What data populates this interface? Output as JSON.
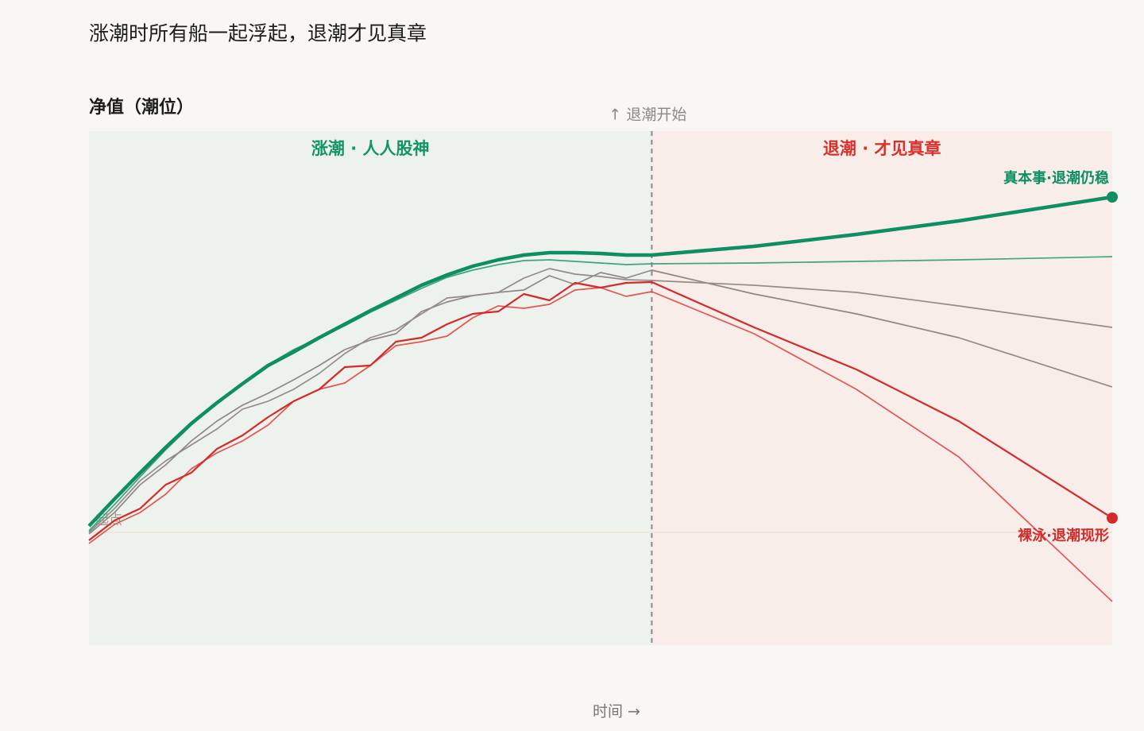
{
  "title": "涨潮时所有船一起浮起，退潮才见真章",
  "chart_data": {
    "type": "line",
    "y_label": "净值（潮位）",
    "x_label": "时间 →",
    "split_label": "↑ 退潮开始",
    "rise_label": "涨潮 · 人人股神",
    "fall_label": "退潮 · 才见真章",
    "baseline_label": "起点",
    "split_x": 22,
    "baseline": 0,
    "xlim": [
      0,
      40
    ],
    "ylim": [
      -142,
      505
    ],
    "x": [
      0,
      1,
      2,
      3,
      4,
      5,
      6,
      7,
      8,
      9,
      10,
      11,
      12,
      13,
      14,
      15,
      16,
      17,
      18,
      19,
      20,
      21,
      22,
      26,
      30,
      34,
      40
    ],
    "series": [
      {
        "name": "真本事·退潮仍稳",
        "color": "#0e8f63",
        "values": [
          8,
          42,
          75,
          107,
          137,
          163,
          187,
          210,
          227,
          245,
          262,
          279,
          295,
          311,
          324,
          335,
          343,
          349,
          352,
          352,
          351,
          349,
          349,
          360,
          375,
          392,
          422
        ]
      },
      {
        "color": "#3ea57f",
        "values": [
          2,
          35,
          70,
          104,
          135,
          162,
          188,
          211,
          230,
          245,
          260,
          277,
          292,
          307,
          321,
          330,
          337,
          342,
          343,
          341,
          339,
          337,
          338,
          339,
          341,
          343,
          347
        ]
      },
      {
        "color": "#958b87",
        "values": [
          0,
          30,
          65,
          90,
          110,
          130,
          155,
          165,
          180,
          200,
          225,
          245,
          255,
          275,
          295,
          298,
          302,
          320,
          332,
          325,
          322,
          318,
          317,
          311,
          302,
          285,
          258
        ]
      },
      {
        "color": "#8f8886",
        "values": [
          -2,
          25,
          60,
          85,
          115,
          140,
          160,
          175,
          192,
          210,
          230,
          242,
          250,
          278,
          290,
          298,
          302,
          305,
          323,
          312,
          327,
          320,
          330,
          300,
          275,
          245,
          183
        ]
      },
      {
        "name": "裸泳·退潮现形",
        "color": "#d42a2a",
        "values": [
          -10,
          15,
          30,
          60,
          75,
          105,
          122,
          145,
          165,
          180,
          208,
          210,
          240,
          245,
          262,
          275,
          278,
          300,
          292,
          314,
          308,
          314,
          315,
          258,
          205,
          140,
          18
        ]
      },
      {
        "color": "#e25656",
        "values": [
          -14,
          10,
          25,
          48,
          80,
          100,
          115,
          135,
          165,
          180,
          188,
          210,
          235,
          240,
          247,
          270,
          285,
          282,
          287,
          305,
          308,
          297,
          303,
          250,
          180,
          95,
          -87
        ]
      }
    ]
  }
}
